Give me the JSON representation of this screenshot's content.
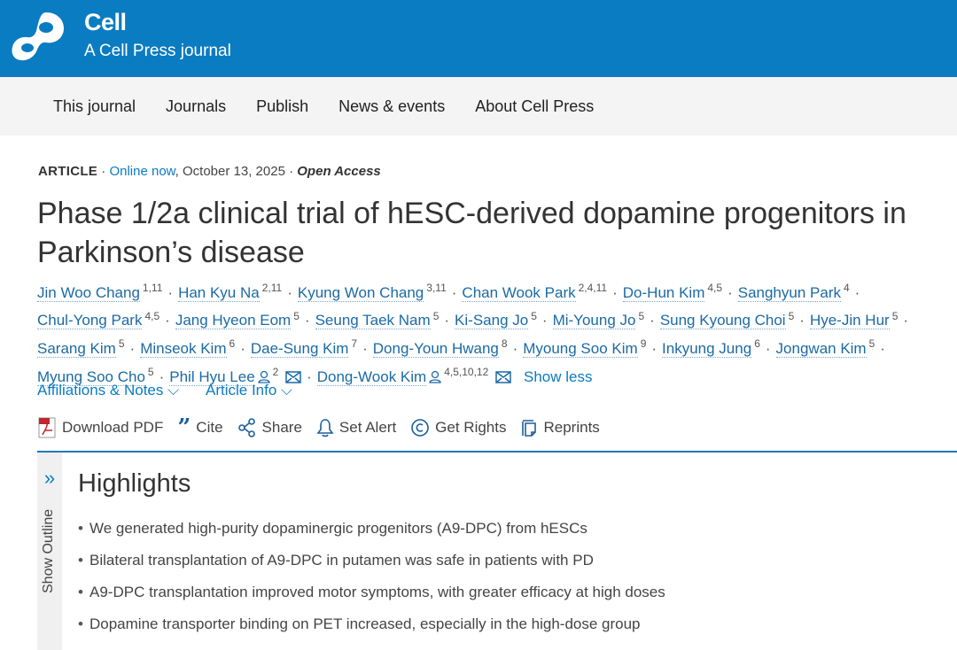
{
  "header": {
    "brand": "Cell",
    "subtitle": "A Cell Press journal",
    "color": "#0a7cc1"
  },
  "nav": [
    "This journal",
    "Journals",
    "Publish",
    "News & events",
    "About Cell Press"
  ],
  "meta": {
    "type": "ARTICLE",
    "status": "Online now",
    "date": ", October 13, 2025",
    "access": "Open Access"
  },
  "title": "Phase 1/2a clinical trial of hESC-derived dopamine progenitors in Parkinson’s disease",
  "authors": [
    {
      "name": "Jin Woo Chang",
      "sup": "1,11"
    },
    {
      "name": "Han Kyu Na",
      "sup": "2,11"
    },
    {
      "name": "Kyung Won Chang",
      "sup": "3,11"
    },
    {
      "name": "Chan Wook Park",
      "sup": "2,4,11"
    },
    {
      "name": "Do-Hun Kim",
      "sup": "4,5"
    },
    {
      "name": "Sanghyun Park",
      "sup": "4"
    },
    {
      "name": "Chul-Yong Park",
      "sup": "4,5"
    },
    {
      "name": "Jang Hyeon Eom",
      "sup": "5"
    },
    {
      "name": "Seung Taek Nam",
      "sup": "5"
    },
    {
      "name": "Ki-Sang Jo",
      "sup": "5"
    },
    {
      "name": "Mi-Young Jo",
      "sup": "5"
    },
    {
      "name": "Sung Kyoung Choi",
      "sup": "5"
    },
    {
      "name": "Hye-Jin Hur",
      "sup": "5"
    },
    {
      "name": "Sarang Kim",
      "sup": "5"
    },
    {
      "name": "Minseok Kim",
      "sup": "6"
    },
    {
      "name": "Dae-Sung Kim",
      "sup": "7"
    },
    {
      "name": "Dong-Youn Hwang",
      "sup": "8"
    },
    {
      "name": "Myoung Soo Kim",
      "sup": "9"
    },
    {
      "name": "Inkyung Jung",
      "sup": "6"
    },
    {
      "name": "Jongwan Kim",
      "sup": "5"
    },
    {
      "name": "Myung Soo Cho",
      "sup": "5"
    },
    {
      "name": "Phil Hyu Lee",
      "sup": "2",
      "corresponding": true
    },
    {
      "name": "Dong-Wook Kim",
      "sup": "4,5,10,12",
      "corresponding": true
    }
  ],
  "show_less": "Show less",
  "links": {
    "affiliations": "Affiliations & Notes",
    "article_info": "Article Info"
  },
  "tools": [
    {
      "label": "Download PDF",
      "icon": "pdf-icon"
    },
    {
      "label": "Cite",
      "icon": "quote-icon"
    },
    {
      "label": "Share",
      "icon": "share-icon"
    },
    {
      "label": "Set Alert",
      "icon": "bell-icon"
    },
    {
      "label": "Get Rights",
      "icon": "copyright-icon"
    },
    {
      "label": "Reprints",
      "icon": "reprints-icon"
    }
  ],
  "outline": "Show Outline",
  "highlights": {
    "heading": "Highlights",
    "items": [
      "We generated high-purity dopaminergic progenitors (A9-DPC) from hESCs",
      "Bilateral transplantation of A9-DPC in putamen was safe in patients with PD",
      "A9-DPC transplantation improved motor symptoms, with greater efficacy at high doses",
      "Dopamine transporter binding on PET increased, especially in the high-dose group"
    ]
  }
}
